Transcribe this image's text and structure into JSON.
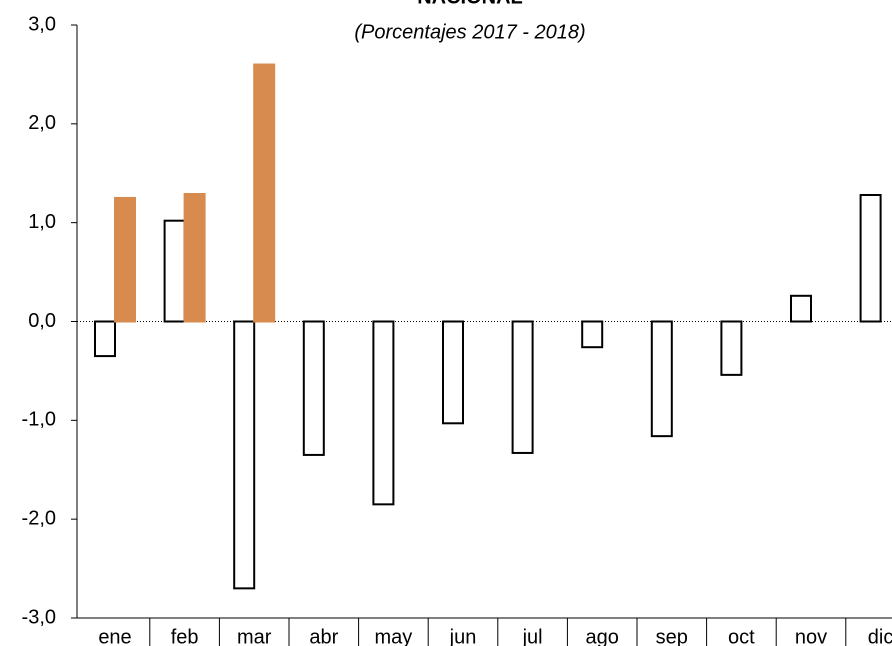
{
  "chart_data": {
    "type": "bar",
    "title": "NACIONAL",
    "subtitle": "(Porcentajes 2017 - 2018)",
    "categories": [
      "ene",
      "feb",
      "mar",
      "abr",
      "may",
      "jun",
      "jul",
      "ago",
      "sep",
      "oct",
      "nov",
      "dic"
    ],
    "series": [
      {
        "color": "#ffffff",
        "values": [
          -0.35,
          1.02,
          -2.7,
          -1.35,
          -1.85,
          -1.03,
          -1.33,
          -0.26,
          -1.16,
          -0.54,
          0.26,
          1.28
        ]
      },
      {
        "color": "#d78b4e",
        "values": [
          1.25,
          1.29,
          2.6,
          null,
          null,
          null,
          null,
          null,
          null,
          null,
          null,
          null
        ]
      }
    ],
    "ylim": [
      -3,
      3
    ],
    "yticks": [
      {
        "value": 3,
        "label": "3,0"
      },
      {
        "value": 2,
        "label": "2,0"
      },
      {
        "value": 1,
        "label": "1,0"
      },
      {
        "value": 0,
        "label": "0,0"
      },
      {
        "value": -1,
        "label": "-1,0"
      },
      {
        "value": -2,
        "label": "-2,0"
      },
      {
        "value": -3,
        "label": "-3,0"
      }
    ]
  }
}
